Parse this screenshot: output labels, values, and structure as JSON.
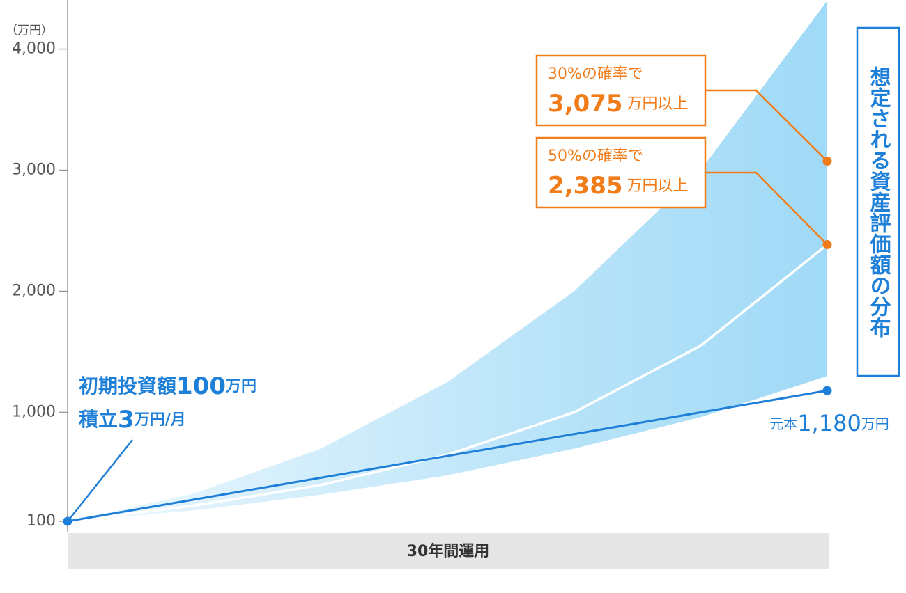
{
  "chart_data": {
    "type": "line",
    "y_unit": "（万円）",
    "ylim": [
      100,
      4400
    ],
    "yticks": [
      100,
      {
        "value": 1000,
        "label": "1,000"
      },
      {
        "value": 2000,
        "label": "2,000"
      },
      {
        "value": 3000,
        "label": "3,000"
      },
      {
        "value": 4000,
        "label": "4,000"
      }
    ],
    "xlim": [
      0,
      30
    ],
    "x_band_label": "30年間運用",
    "band": {
      "x": [
        0,
        5,
        10,
        15,
        20,
        25,
        30
      ],
      "upper": [
        100,
        330,
        700,
        1250,
        2000,
        3000,
        4400
      ],
      "lower": [
        100,
        190,
        320,
        480,
        700,
        960,
        1300
      ],
      "color": "#8fd3f5"
    },
    "series": [
      {
        "name": "元本",
        "color": "#1e7fd8",
        "x": [
          0,
          30
        ],
        "values": [
          100,
          1180
        ],
        "value_labels": [
          null,
          "1,180"
        ],
        "unit": "万円"
      },
      {
        "color": "#ffffff",
        "x": [
          0,
          5,
          10,
          15,
          20,
          25,
          30
        ],
        "values": [
          100,
          230,
          400,
          650,
          1000,
          1550,
          2385
        ]
      }
    ],
    "markers": [
      {
        "x": 30,
        "value": 3075,
        "label": "3,075",
        "prefix": "30%の確率で",
        "suffix": "万円以上"
      },
      {
        "x": 30,
        "value": 2385,
        "label": "2,385",
        "prefix": "50%の確率で",
        "suffix": "万円以上"
      }
    ],
    "marker_color": "#f07c1a",
    "start_note": {
      "line1": [
        "初期投資額",
        "100",
        "万円"
      ],
      "line2": [
        "積立",
        "3",
        "万円/月"
      ]
    },
    "distribution_label": "想定される資産評価額の分布"
  }
}
